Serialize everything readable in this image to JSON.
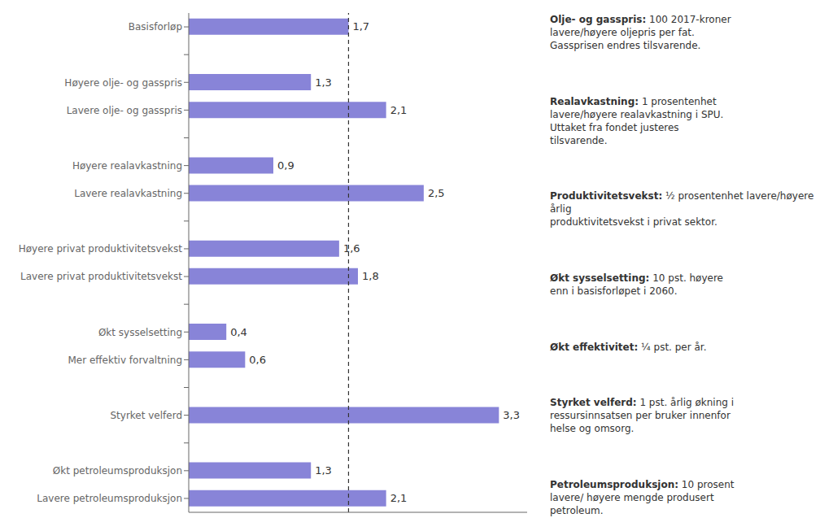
{
  "chart_data": {
    "type": "bar",
    "orientation": "horizontal",
    "categories": [
      "Basisforløp",
      null,
      "Høyere olje- og gasspris",
      "Lavere olje- og gasspris",
      null,
      "Høyere realavkastning",
      "Lavere realavkastning",
      null,
      "Høyere privat produktivitetsvekst",
      "Lavere privat produktivitetsvekst",
      null,
      "Økt sysselsetting",
      "Mer effektiv forvaltning",
      null,
      "Styrket velferd",
      null,
      "Økt petroleumsproduksjon",
      "Lavere petroleumsproduksjon"
    ],
    "values": [
      1.7,
      null,
      1.3,
      2.1,
      null,
      0.9,
      2.5,
      null,
      1.6,
      1.8,
      null,
      0.4,
      0.6,
      null,
      3.3,
      null,
      1.3,
      2.1
    ],
    "value_labels": [
      "1,7",
      null,
      "1,3",
      "2,1",
      null,
      "0,9",
      "2,5",
      null,
      "1,6",
      "1,8",
      null,
      "0,4",
      "0,6",
      null,
      "3,3",
      null,
      "1,3",
      "2,1"
    ],
    "data_labels": true,
    "color": "#8884d8",
    "xlim": [
      0,
      3.6
    ],
    "tick_labels": "y",
    "reference_line": 1.7,
    "annotations": [
      {
        "bold": "Olje- og gasspris:",
        "text": " 100 2017-kroner\nlavere/høyere oljepris per fat.\nGassprisen endres tilsvarende."
      },
      {
        "bold": "Realavkastning:",
        "text": " 1 prosentenhet\nlavere/høyere realavkastning i SPU.\nUttaket fra fondet justeres\ntilsvarende."
      },
      {
        "bold": "Produktivitetsvekst:",
        "text": " ½ prosentenhet lavere/høyere årlig\nproduktivitetsvekst i privat sektor."
      },
      {
        "bold": "Økt sysselsetting:",
        "text": " 10 pst. høyere\nenn i basisforløpet i 2060."
      },
      {
        "bold": "Økt effektivitet:",
        "text": " ¼ pst. per år."
      },
      {
        "bold": "Styrket velferd:",
        "text": " 1 pst. årlig økning i\nressursinnsatsen per bruker innenfor\nhelse og omsorg."
      },
      {
        "bold": "Petroleumsproduksjon:",
        "text": " 10 prosent\nlavere/ høyere mengde produsert\npetroleum."
      }
    ]
  }
}
